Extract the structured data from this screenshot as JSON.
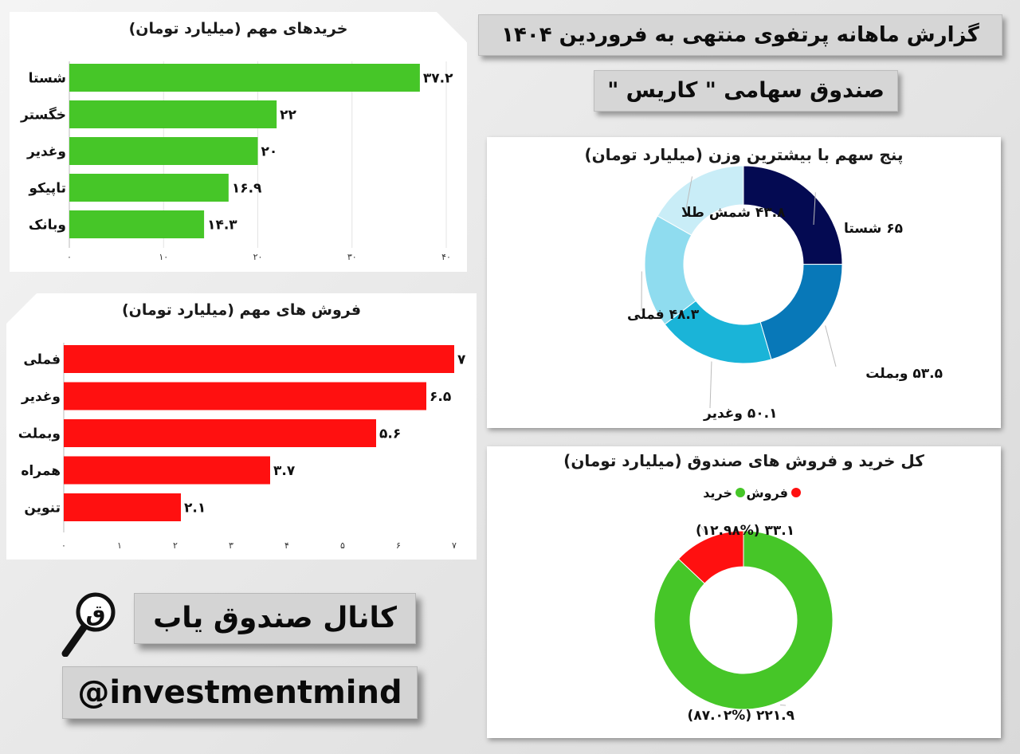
{
  "header": {
    "title": "گزارش ماهانه پرتفوی منتهی به فروردین ۱۴۰۴",
    "fund_name": "صندوق سهامی \" کاریس \""
  },
  "brand": {
    "channel": "کانال صندوق یاب",
    "handle": "@investmentmind",
    "logo_icon": "magnifier-logo-icon",
    "logo_letter": "ق"
  },
  "colors": {
    "buy": "#46c628",
    "sell": "#ff1010",
    "donut": [
      "#040a52",
      "#0878b8",
      "#1ab4d8",
      "#8fdcef",
      "#c9edf7"
    ]
  },
  "chart_data": [
    {
      "id": "buys",
      "type": "bar",
      "orientation": "horizontal",
      "title": "خریدهای مهم (میلیارد تومان)",
      "categories": [
        "شستا",
        "خگستر",
        "وغدیر",
        "تاپیکو",
        "وبانک"
      ],
      "values": [
        37.2,
        22,
        20,
        16.9,
        14.3
      ],
      "value_labels": [
        "۳۷.۲",
        "۲۲",
        "۲۰",
        "۱۶.۹",
        "۱۴.۳"
      ],
      "xlim": [
        0,
        40
      ],
      "ticks": [
        0,
        10,
        20,
        30,
        40
      ],
      "tick_labels": [
        "۰",
        "۱۰",
        "۲۰",
        "۳۰",
        "۴۰"
      ],
      "grid": true
    },
    {
      "id": "sells",
      "type": "bar",
      "orientation": "horizontal",
      "title": "فروش های مهم (میلیارد تومان)",
      "categories": [
        "فملی",
        "وغدیر",
        "وبملت",
        "همراه",
        "تنوین"
      ],
      "values": [
        7,
        6.5,
        5.6,
        3.7,
        2.1
      ],
      "value_labels": [
        "۷",
        "۶.۵",
        "۵.۶",
        "۳.۷",
        "۲.۱"
      ],
      "xlim": [
        0,
        7
      ],
      "ticks": [
        0,
        1,
        2,
        3,
        4,
        5,
        6,
        7
      ],
      "tick_labels": [
        "۰",
        "۱",
        "۲",
        "۳",
        "۴",
        "۵",
        "۶",
        "۷"
      ],
      "grid": false
    },
    {
      "id": "top5",
      "type": "pie",
      "donut": true,
      "title": "پنج سهم با بیشترین وزن (میلیارد تومان)",
      "categories": [
        "شستا",
        "وبملت",
        "وغدیر",
        "فملی",
        "شمش طلا"
      ],
      "values": [
        65,
        53.5,
        50.1,
        48.3,
        43.8
      ],
      "labels": [
        "۶۵ شستا",
        "۵۳.۵ وبملت",
        "۵۰.۱ وغدیر",
        "۴۸.۳ فملی",
        "۴۳.۸ شمش طلا"
      ]
    },
    {
      "id": "totals",
      "type": "pie",
      "donut": true,
      "title": "کل خرید و فروش های صندوق (میلیارد تومان)",
      "legend": [
        "فروش",
        "خرید"
      ],
      "legend_position": "top",
      "categories": [
        "خرید",
        "فروش"
      ],
      "values": [
        221.9,
        33.1
      ],
      "percents": [
        87.02,
        12.98
      ],
      "labels": [
        "۲۲۱.۹ (۸۷.۰۲%)",
        "۳۳.۱ (۱۲.۹۸%)"
      ]
    }
  ]
}
